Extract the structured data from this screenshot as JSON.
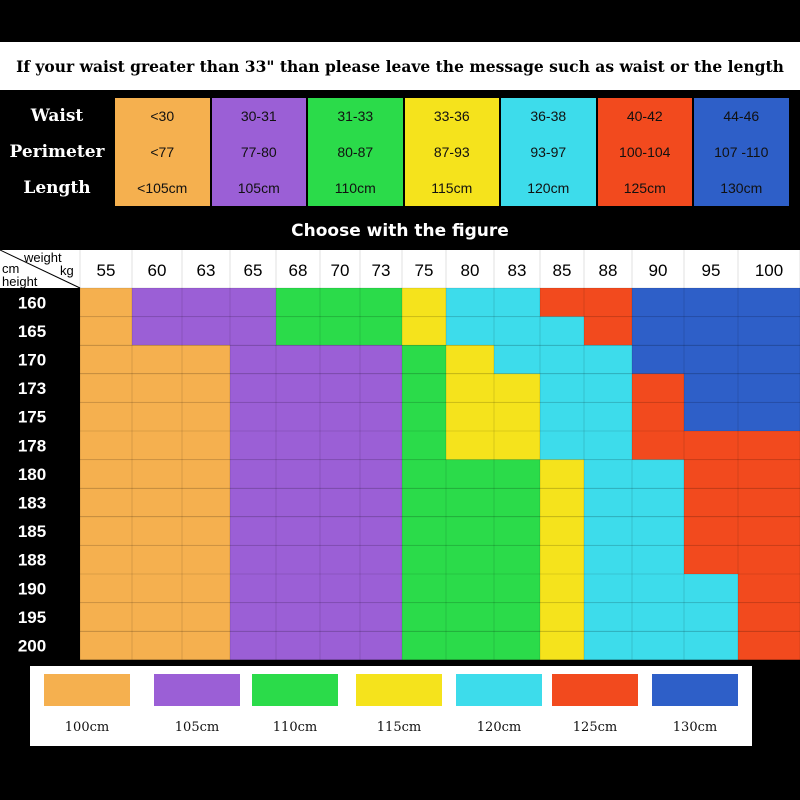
{
  "banner": "If your waist greater than 33\" than please leave the message such as waist or the length",
  "size_table": {
    "row_labels": [
      "Waist",
      "Perimeter",
      "Length"
    ],
    "columns": [
      {
        "waist": "<30",
        "perimeter": "<77",
        "length": "<105cm",
        "color": "#F5B04F"
      },
      {
        "waist": "30-31",
        "perimeter": "77-80",
        "length": "105cm",
        "color": "#9B5FD6"
      },
      {
        "waist": "31-33",
        "perimeter": "80-87",
        "length": "110cm",
        "color": "#2BDB4A"
      },
      {
        "waist": "33-36",
        "perimeter": "87-93",
        "length": "115cm",
        "color": "#F5E31C"
      },
      {
        "waist": "36-38",
        "perimeter": "93-97",
        "length": "120cm",
        "color": "#3DDCEB"
      },
      {
        "waist": "40-42",
        "perimeter": "100-104",
        "length": "125cm",
        "color": "#F24A1E"
      },
      {
        "waist": "44-46",
        "perimeter": "107 -110",
        "length": "130cm",
        "color": "#2E5FC8"
      }
    ]
  },
  "subtitle": "Choose with the figure",
  "grid": {
    "corner": {
      "weight": "weight",
      "kg": "kg",
      "cm": "cm",
      "height": "height"
    },
    "weights": [
      "55",
      "60",
      "63",
      "65",
      "68",
      "70",
      "73",
      "75",
      "80",
      "83",
      "85",
      "88",
      "90",
      "95",
      "100"
    ],
    "heights": [
      "160",
      "165",
      "170",
      "173",
      "175",
      "178",
      "180",
      "183",
      "185",
      "188",
      "190",
      "195",
      "200"
    ],
    "palette": {
      "O": "#F5B04F",
      "P": "#9B5FD6",
      "G": "#2BDB4A",
      "Y": "#F5E31C",
      "C": "#3DDCEB",
      "R": "#F24A1E",
      "B": "#2E5FC8"
    },
    "rows": [
      "OPPPGGGYCCRRBBB",
      "OPPPGGGYCCCRBBB",
      "OOOPPPPGYCCCBBB",
      "OOOPPPPGYYCCRBB",
      "OOOPPPPGYYCCRBB",
      "OOOPPPPGYYCCRRR",
      "OOOPPPPGGGYCCRR",
      "OOOPPPPGGGYCCRR",
      "OOOPPPPGGGYCCRR",
      "OOOPPPPGGGYCCRR",
      "OOOPPPPGGGYCCCR",
      "OOOPPPPGGGYCCCR",
      "OOOPPPPGGGYCCCR"
    ]
  },
  "legend": [
    {
      "label": "100cm",
      "color": "#F5B04F"
    },
    {
      "label": "105cm",
      "color": "#9B5FD6"
    },
    {
      "label": "110cm",
      "color": "#2BDB4A"
    },
    {
      "label": "115cm",
      "color": "#F5E31C"
    },
    {
      "label": "120cm",
      "color": "#3DDCEB"
    },
    {
      "label": "125cm",
      "color": "#F24A1E"
    },
    {
      "label": "130cm",
      "color": "#2E5FC8"
    }
  ]
}
